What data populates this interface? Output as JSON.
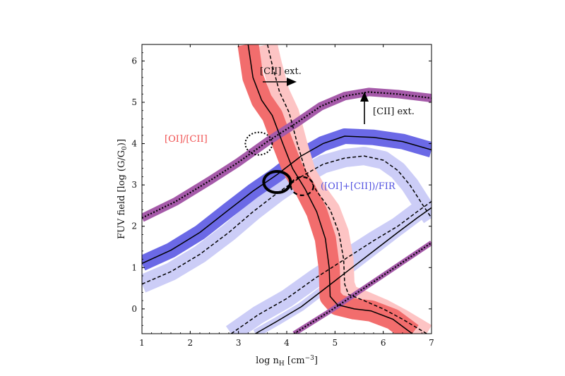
{
  "chart_data": {
    "type": "line",
    "xlabel": "log n",
    "xlabel_sub": "H",
    "xlabel_unit": " [cm",
    "xlabel_unit_sup": "−3",
    "xlabel_unit_end": "]",
    "ylabel": "FUV field [log (G/G",
    "ylabel_sub": "0",
    "ylabel_end": ")]",
    "xlim": [
      1,
      7
    ],
    "ylim": [
      -0.6,
      6.4
    ],
    "xticks": [
      "1",
      "2",
      "3",
      "4",
      "5",
      "6",
      "7"
    ],
    "yticks": [
      "0",
      "1",
      "2",
      "3",
      "4",
      "5",
      "6"
    ],
    "colors": {
      "oi_cii_outer": "#fdc4c4",
      "oi_cii_inner": "#f26d6d",
      "fir_outer": "#cccdf7",
      "fir_inner": "#6b69e6",
      "cii_ext": "#a55aa9",
      "oi_cii_text": "#f05050",
      "fir_text": "#5050e0"
    },
    "series": [
      {
        "label": "[OI]/[CII]",
        "role": "measured ratio (solid)",
        "points": [
          [
            3.2,
            6.4
          ],
          [
            3.3,
            5.6
          ],
          [
            3.48,
            5.05
          ],
          [
            3.7,
            4.68
          ],
          [
            3.92,
            4.0
          ],
          [
            4.12,
            3.4
          ],
          [
            4.38,
            2.9
          ],
          [
            4.62,
            2.35
          ],
          [
            4.8,
            1.7
          ],
          [
            4.88,
            1.0
          ],
          [
            4.9,
            0.3
          ],
          [
            5.05,
            0.1
          ],
          [
            5.4,
            0.0
          ],
          [
            5.75,
            -0.05
          ],
          [
            6.2,
            -0.25
          ],
          [
            6.6,
            -0.6
          ]
        ]
      },
      {
        "label": "[OI]/[CII]",
        "role": "extinction-corrected (dashed)",
        "points": [
          [
            3.6,
            6.4
          ],
          [
            3.7,
            5.9
          ],
          [
            3.85,
            5.25
          ],
          [
            4.05,
            4.75
          ],
          [
            4.22,
            4.0
          ],
          [
            4.4,
            3.3
          ],
          [
            4.62,
            2.85
          ],
          [
            4.9,
            2.4
          ],
          [
            5.08,
            1.85
          ],
          [
            5.18,
            1.2
          ],
          [
            5.2,
            0.6
          ],
          [
            5.28,
            0.35
          ],
          [
            5.6,
            0.2
          ],
          [
            6.0,
            0.0
          ],
          [
            6.4,
            -0.25
          ],
          [
            6.9,
            -0.6
          ]
        ]
      },
      {
        "label": "([OI]+[CII])/FIR",
        "role": "upper branch (solid)",
        "points": [
          [
            1.0,
            1.1
          ],
          [
            1.6,
            1.42
          ],
          [
            2.2,
            1.85
          ],
          [
            2.8,
            2.4
          ],
          [
            3.3,
            2.85
          ],
          [
            3.8,
            3.25
          ],
          [
            4.3,
            3.7
          ],
          [
            4.75,
            4.0
          ],
          [
            5.2,
            4.18
          ],
          [
            5.8,
            4.15
          ],
          [
            6.4,
            4.05
          ],
          [
            7.0,
            3.85
          ]
        ]
      },
      {
        "label": "([OI]+[CII])/FIR",
        "role": "upper branch extinction-corrected (dashed)",
        "points": [
          [
            1.0,
            0.6
          ],
          [
            1.6,
            0.9
          ],
          [
            2.2,
            1.32
          ],
          [
            2.8,
            1.85
          ],
          [
            3.3,
            2.35
          ],
          [
            3.8,
            2.8
          ],
          [
            4.3,
            3.2
          ],
          [
            4.75,
            3.5
          ],
          [
            5.2,
            3.65
          ],
          [
            5.6,
            3.7
          ],
          [
            6.0,
            3.6
          ],
          [
            6.3,
            3.35
          ],
          [
            6.55,
            3.0
          ],
          [
            6.8,
            2.55
          ],
          [
            7.0,
            2.2
          ]
        ]
      },
      {
        "label": "([OI]+[CII])/FIR",
        "role": "lower branch (solid)",
        "points": [
          [
            3.35,
            -0.6
          ],
          [
            3.8,
            -0.3
          ],
          [
            4.3,
            0.05
          ],
          [
            4.8,
            0.5
          ],
          [
            5.3,
            0.95
          ],
          [
            5.8,
            1.4
          ],
          [
            6.3,
            1.85
          ],
          [
            6.7,
            2.2
          ],
          [
            7.0,
            2.45
          ]
        ]
      },
      {
        "label": "([OI]+[CII])/FIR",
        "role": "lower branch extinction-corrected (dashed)",
        "points": [
          [
            2.85,
            -0.6
          ],
          [
            3.4,
            -0.15
          ],
          [
            4.0,
            0.25
          ],
          [
            4.6,
            0.75
          ],
          [
            5.2,
            1.2
          ],
          [
            5.8,
            1.65
          ],
          [
            6.3,
            2.0
          ],
          [
            6.7,
            2.35
          ],
          [
            7.0,
            2.6
          ]
        ]
      },
      {
        "label": "[CII] ext.",
        "role": "upper limit (dotted)",
        "points": [
          [
            1.0,
            2.2
          ],
          [
            1.7,
            2.6
          ],
          [
            2.4,
            3.1
          ],
          [
            3.0,
            3.55
          ],
          [
            3.6,
            4.05
          ],
          [
            4.2,
            4.5
          ],
          [
            4.7,
            4.9
          ],
          [
            5.2,
            5.15
          ],
          [
            5.7,
            5.25
          ],
          [
            6.3,
            5.2
          ],
          [
            7.0,
            5.1
          ]
        ]
      },
      {
        "label": "[CII] ext.",
        "role": "lower-right limit (dotted)",
        "points": [
          [
            4.15,
            -0.6
          ],
          [
            4.9,
            -0.05
          ],
          [
            5.6,
            0.5
          ],
          [
            6.3,
            1.05
          ],
          [
            7.0,
            1.6
          ]
        ]
      }
    ],
    "solution_markers": [
      {
        "role": "best fit (solid ellipse)",
        "x": 3.8,
        "y": 3.07
      },
      {
        "role": "extinction-corrected fit (dashed ellipse)",
        "x": 4.32,
        "y": 2.97
      },
      {
        "role": "alternative (dotted ellipse)",
        "x": 3.42,
        "y": 4.0
      }
    ],
    "annotations": {
      "cii_ext_right": "[CII] ext.",
      "cii_ext_up": "[CII] ext.",
      "oi_cii": "[OI]/[CII]",
      "fir": "([OI]+[CII])/FIR"
    },
    "grid": false,
    "legend": "none"
  }
}
